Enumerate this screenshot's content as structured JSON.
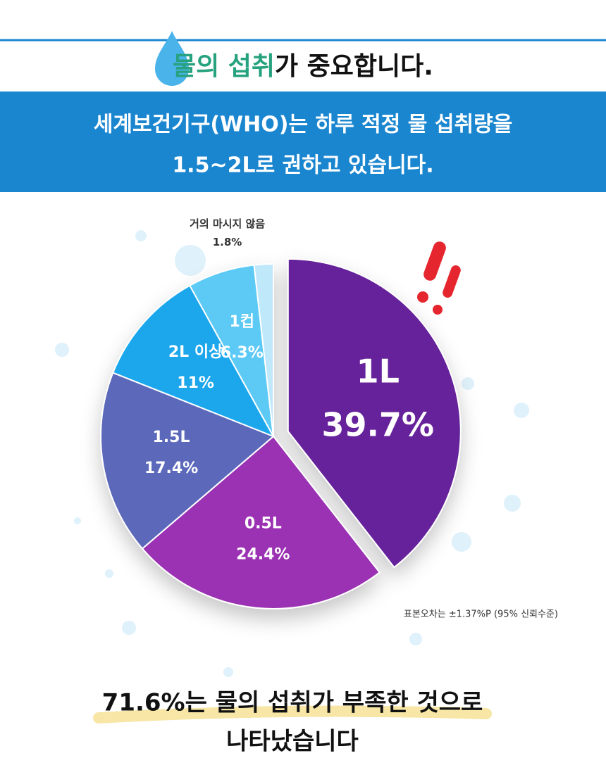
{
  "header": {
    "title_highlight": "물의 섭취",
    "title_rest": "가 중요합니다.",
    "banner": [
      "세계보건기구(WHO)는 하루 적정 물 섭취량을",
      "1.5~2L로 권하고 있습니다."
    ]
  },
  "chart_data": {
    "type": "pie",
    "categories": [
      "1L",
      "0.5L",
      "1.5L",
      "2L 이상",
      "1컵",
      "거의 마시지 않음"
    ],
    "values": [
      39.7,
      24.4,
      17.4,
      11,
      6.3,
      1.8
    ],
    "value_labels": [
      "39.7%",
      "24.4%",
      "17.4%",
      "11%",
      "6.3%",
      "1.8%"
    ],
    "colors": [
      "#66239a",
      "#9a33b3",
      "#5b69bb",
      "#1ca7ec",
      "#5ccaf5",
      "#bfe8fb"
    ],
    "note": "표본오차는 ±1.37%P (95% 신뢰수준)"
  },
  "footer": {
    "lines": [
      "71.6%는 물의 섭취가 부족한 것으로",
      "나타났습니다"
    ]
  }
}
